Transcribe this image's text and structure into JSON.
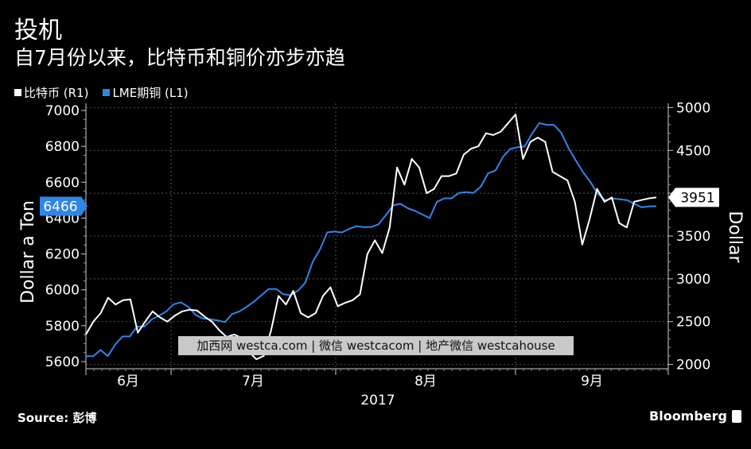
{
  "title": "投机",
  "subtitle": "自7月份以来，比特币和铜价亦步亦趋",
  "legend": [
    {
      "label": "比特币 (R1)",
      "color": "#ffffff"
    },
    {
      "label": "LME期铜 (L1)",
      "color": "#2f86e8"
    }
  ],
  "source": "Source: 彭博",
  "brand": "Bloomberg",
  "watermark": "加西网 westca.com | 微信 westcacom | 地产微信 westcahouse",
  "chart_data": {
    "type": "line",
    "xlabel": "2017",
    "x_ticks": [
      "6月",
      "7月",
      "8月",
      "9月"
    ],
    "left_axis": {
      "label": "Dollar a Ton",
      "range": [
        5560,
        7040
      ],
      "ticks": [
        5600,
        5800,
        6000,
        6200,
        6400,
        6600,
        6800,
        7000
      ]
    },
    "right_axis": {
      "label": "Dollar",
      "range": [
        1950,
        5050
      ],
      "ticks": [
        2000,
        2500,
        3000,
        3500,
        4000,
        4500,
        5000
      ]
    },
    "last_value_labels": {
      "left": "6466",
      "right": "3951"
    },
    "series": [
      {
        "name": "LME期铜 (L1)",
        "axis": "left",
        "color": "#2f86e8",
        "values": [
          5630,
          5630,
          5665,
          5630,
          5695,
          5740,
          5740,
          5795,
          5795,
          5835,
          5855,
          5880,
          5920,
          5930,
          5905,
          5860,
          5840,
          5835,
          5830,
          5820,
          5865,
          5880,
          5905,
          5935,
          5970,
          6005,
          6005,
          5975,
          5970,
          5995,
          6040,
          6155,
          6225,
          6320,
          6325,
          6320,
          6340,
          6355,
          6350,
          6350,
          6365,
          6415,
          6470,
          6480,
          6455,
          6440,
          6420,
          6400,
          6490,
          6510,
          6510,
          6540,
          6545,
          6540,
          6575,
          6650,
          6665,
          6740,
          6785,
          6795,
          6800,
          6870,
          6930,
          6920,
          6920,
          6875,
          6790,
          6720,
          6655,
          6600,
          6535,
          6500,
          6510,
          6505,
          6500,
          6480,
          6460,
          6465,
          6466
        ]
      },
      {
        "name": "比特币 (R1)",
        "axis": "right",
        "color": "#ffffff",
        "values": [
          2350,
          2500,
          2600,
          2780,
          2700,
          2750,
          2760,
          2370,
          2500,
          2620,
          2550,
          2500,
          2570,
          2620,
          2640,
          2630,
          2560,
          2500,
          2400,
          2320,
          2350,
          2310,
          2150,
          2060,
          2100,
          2400,
          2800,
          2700,
          2860,
          2600,
          2550,
          2600,
          2800,
          2900,
          2680,
          2720,
          2750,
          2820,
          3290,
          3450,
          3300,
          3600,
          4300,
          4100,
          4400,
          4300,
          4000,
          4050,
          4200,
          4200,
          4230,
          4450,
          4520,
          4550,
          4700,
          4680,
          4720,
          4820,
          4920,
          4400,
          4600,
          4650,
          4600,
          4250,
          4200,
          4150,
          3900,
          3400,
          3700,
          4050,
          3900,
          3950,
          3650,
          3600,
          3900,
          3920,
          3940,
          3951
        ]
      }
    ]
  }
}
